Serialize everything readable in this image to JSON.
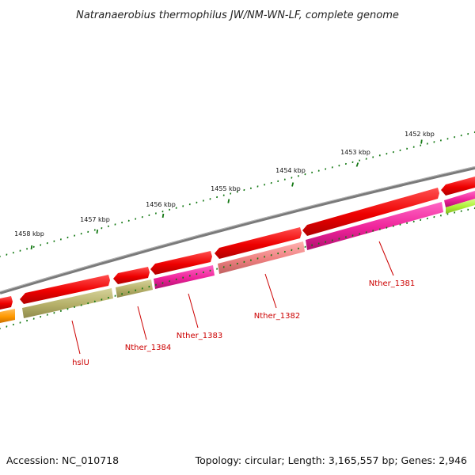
{
  "title": "Natranaerobius thermophilus JW/NM-WN-LF, complete genome",
  "footer": {
    "accession": "Accession: NC_010718",
    "topology": "Topology: circular; Length: 3,165,557 bp; Genes: 2,946"
  },
  "scale_ticks": [
    {
      "label": "1452 kbp"
    },
    {
      "label": "1453 kbp"
    },
    {
      "label": "1454 kbp"
    },
    {
      "label": "1455 kbp"
    },
    {
      "label": "1456 kbp"
    },
    {
      "label": "1457 kbp"
    },
    {
      "label": "1458 kbp"
    }
  ],
  "gene_labels": [
    {
      "label": "Nther_1381"
    },
    {
      "label": "Nther_1382"
    },
    {
      "label": "Nther_1383"
    },
    {
      "label": "Nther_1384"
    },
    {
      "label": "hslU"
    }
  ],
  "colors": {
    "backbone": "#7a7a7a",
    "forward_cds": "#ee0000",
    "tick_green": "#117711",
    "label_red": "#cc0000",
    "olive": "#b5b069",
    "magenta": "#ee2299",
    "salmon": "#ee8080",
    "orange": "#ff9900",
    "lime": "#aaee33"
  }
}
